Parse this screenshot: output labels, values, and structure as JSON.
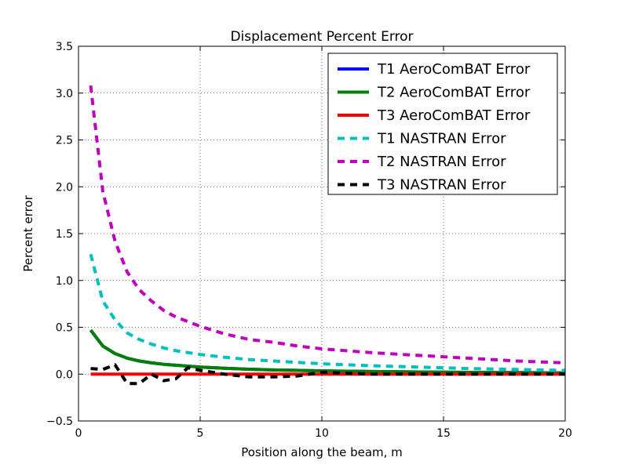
{
  "chart_data": {
    "type": "line",
    "title": "Displacement Percent Error",
    "xlabel": "Position along the beam, m",
    "ylabel": "Percent error",
    "xlim": [
      0,
      20
    ],
    "ylim": [
      -0.5,
      3.5
    ],
    "xticks": [
      0,
      5,
      10,
      15,
      20
    ],
    "yticks": [
      -0.5,
      0.0,
      0.5,
      1.0,
      1.5,
      2.0,
      2.5,
      3.0,
      3.5
    ],
    "xtick_labels": [
      "0",
      "5",
      "10",
      "15",
      "20"
    ],
    "ytick_labels": [
      "−0.5",
      "0.0",
      "0.5",
      "1.0",
      "1.5",
      "2.0",
      "2.5",
      "3.0",
      "3.5"
    ],
    "grid": true,
    "legend_position": "top-right",
    "series": [
      {
        "name": "T1 AeroComBAT Error",
        "color": "#0000ff",
        "style": "solid",
        "x": [
          0.5,
          1,
          1.5,
          2,
          2.5,
          3,
          3.5,
          4,
          5,
          6,
          7,
          8,
          10,
          12,
          14,
          16,
          18,
          20
        ],
        "y": [
          0.47,
          0.3,
          0.22,
          0.17,
          0.14,
          0.12,
          0.105,
          0.095,
          0.075,
          0.062,
          0.052,
          0.045,
          0.035,
          0.028,
          0.023,
          0.019,
          0.016,
          0.014
        ]
      },
      {
        "name": "T2 AeroComBAT Error",
        "color": "#008000",
        "style": "solid",
        "x": [
          0.5,
          1,
          1.5,
          2,
          2.5,
          3,
          3.5,
          4,
          5,
          6,
          7,
          8,
          10,
          12,
          14,
          16,
          18,
          20
        ],
        "y": [
          0.47,
          0.3,
          0.22,
          0.17,
          0.14,
          0.12,
          0.105,
          0.095,
          0.075,
          0.062,
          0.052,
          0.045,
          0.035,
          0.028,
          0.023,
          0.019,
          0.016,
          0.014
        ]
      },
      {
        "name": "T3 AeroComBAT Error",
        "color": "#ff0000",
        "style": "solid",
        "x": [
          0.5,
          20
        ],
        "y": [
          0.0,
          0.0
        ]
      },
      {
        "name": "T1 NASTRAN Error",
        "color": "#00bfbf",
        "style": "dashed",
        "x": [
          0.5,
          1,
          1.5,
          2,
          2.5,
          3,
          3.5,
          4,
          5,
          6,
          7,
          8,
          9,
          10,
          12,
          14,
          16,
          18,
          20
        ],
        "y": [
          1.28,
          0.78,
          0.58,
          0.44,
          0.37,
          0.32,
          0.28,
          0.25,
          0.21,
          0.18,
          0.155,
          0.14,
          0.125,
          0.11,
          0.09,
          0.075,
          0.06,
          0.05,
          0.04
        ]
      },
      {
        "name": "T2 NASTRAN Error",
        "color": "#bf00bf",
        "style": "dashed",
        "x": [
          0.5,
          1,
          1.5,
          2,
          2.5,
          3,
          3.5,
          4,
          5,
          6,
          7,
          8,
          9,
          10,
          12,
          14,
          16,
          18,
          20
        ],
        "y": [
          3.08,
          1.95,
          1.42,
          1.09,
          0.9,
          0.78,
          0.68,
          0.61,
          0.51,
          0.43,
          0.37,
          0.34,
          0.3,
          0.27,
          0.23,
          0.2,
          0.17,
          0.14,
          0.12
        ]
      },
      {
        "name": "T3 NASTRAN Error",
        "color": "#000000",
        "style": "dashed",
        "x": [
          0.5,
          1,
          1.5,
          2,
          2.5,
          3,
          3.5,
          4,
          4.5,
          5,
          6,
          7,
          8,
          9,
          10,
          11,
          12,
          14,
          16,
          18,
          20
        ],
        "y": [
          0.06,
          0.05,
          0.1,
          -0.1,
          -0.1,
          0.0,
          -0.07,
          -0.05,
          0.07,
          0.04,
          0.0,
          -0.03,
          -0.03,
          -0.02,
          0.02,
          0.01,
          0.0,
          0.0,
          0.0,
          0.0,
          0.0
        ]
      }
    ]
  }
}
